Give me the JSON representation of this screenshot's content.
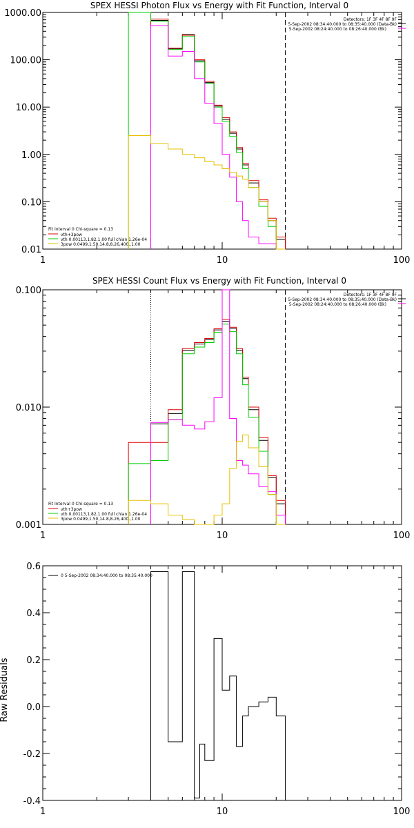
{
  "chart_data": [
    {
      "type": "line",
      "title": "SPEX HESSI Photon Flux vs Energy with Fit Function, Interval 0",
      "xscale": "log",
      "yscale": "log",
      "xlim": [
        1,
        100
      ],
      "ylim": [
        0.01,
        1000
      ],
      "x_tick_labels": [
        "1",
        "10",
        "100"
      ],
      "y_tick_labels": [
        "0.01",
        "0.10",
        "1.00",
        "10.00",
        "100.00",
        "1000.00"
      ],
      "legend_right": {
        "header": "Detectors: 1F 3F 4F 8F 9F",
        "entries": [
          "5-Sep-2002 08:34:40.000 to 08:35:40.000 (Data-Bk)",
          "5-Sep-2002 08:24:40.000 to 08:26:40.000 (Bk)"
        ]
      },
      "legend_left": {
        "header": "Fit Interval 0   Chi-square = 0.13",
        "entries": [
          "vth+3pow",
          "vth 0.00113,1.82,1.00  full chian 1.26e-04",
          "3pow 0.0499,1.50,14.8,8.26,400.,1.00"
        ]
      },
      "vlines": [
        {
          "x": 4.0,
          "style": "dotted"
        },
        {
          "x": 22.5,
          "style": "dashed"
        }
      ],
      "bin_edges": [
        3,
        4,
        5,
        6,
        7,
        8,
        9,
        10,
        11,
        12,
        13,
        14,
        16,
        18,
        20,
        22.5
      ],
      "series": [
        {
          "color": "#000000",
          "values": [
            null,
            680,
            170,
            340,
            95,
            33,
            10.5,
            5.5,
            2.8,
            1.3,
            0.6,
            0.25,
            0.1,
            0.04,
            0.016
          ]
        },
        {
          "color": "#dd0000",
          "values": [
            null,
            720,
            175,
            330,
            100,
            35,
            11,
            6.0,
            3.0,
            1.4,
            0.65,
            0.28,
            0.11,
            0.045,
            0.018
          ]
        },
        {
          "color": "#00cc00",
          "values": [
            1000,
            650,
            165,
            310,
            90,
            31,
            10,
            5.0,
            2.4,
            1.1,
            0.5,
            0.2,
            0.08,
            0.03,
            0.01
          ]
        },
        {
          "color": "#ff00ff",
          "values": [
            null,
            520,
            120,
            150,
            40,
            12,
            4.5,
            1.0,
            0.33,
            0.1,
            0.04,
            0.018,
            0.013,
            0.013,
            null
          ]
        },
        {
          "color": "#e6c000",
          "values": [
            2.5,
            1.7,
            1.3,
            1.0,
            0.85,
            0.7,
            0.6,
            0.5,
            0.42,
            0.35,
            0.3,
            0.2,
            0.1,
            0.04,
            0.01
          ]
        }
      ]
    },
    {
      "type": "line",
      "title": "SPEX HESSI Count Flux vs Energy with Fit Function, Interval 0",
      "xscale": "log",
      "yscale": "log",
      "xlim": [
        1,
        100
      ],
      "ylim": [
        0.001,
        0.1
      ],
      "x_tick_labels": [
        "1",
        "10",
        "100"
      ],
      "y_tick_labels": [
        "0.001",
        "0.010",
        "0.100"
      ],
      "legend_right": {
        "header": "Detectors: 1F 3F 4F 8F 9F",
        "entries": [
          "5-Sep-2002 08:34:40.000 to 08:35:40.000 (Data-Bk)",
          "5-Sep-2002 08:24:40.000 to 08:26:40.000 (Bk)"
        ]
      },
      "legend_left": {
        "header": "Fit Interval 0   Chi-square = 0.13",
        "entries": [
          "vth+3pow",
          "vth 0.00113,1.82,1.00  full chian 1.26e-04",
          "3pow 0.0499,1.50,14.8,8.26,400.,1.00"
        ]
      },
      "vlines": [
        {
          "x": 4.0,
          "style": "dotted"
        },
        {
          "x": 22.5,
          "style": "dashed"
        }
      ],
      "bin_edges": [
        3,
        4,
        5,
        6,
        7,
        8,
        9,
        10,
        11,
        12,
        13,
        14,
        16,
        18,
        20,
        22.5
      ],
      "series": [
        {
          "color": "#000000",
          "values": [
            null,
            0.0072,
            0.0088,
            0.0305,
            0.0345,
            0.0375,
            0.0455,
            0.054,
            0.047,
            0.0305,
            0.0175,
            0.0095,
            0.0052,
            0.0025,
            0.0015
          ]
        },
        {
          "color": "#dd0000",
          "values": [
            0.005,
            0.005,
            0.0095,
            0.0315,
            0.0355,
            0.0385,
            0.0465,
            0.056,
            0.048,
            0.0315,
            0.018,
            0.01,
            0.0055,
            0.0026,
            0.0016
          ]
        },
        {
          "color": "#00cc00",
          "values": [
            0.0033,
            0.0035,
            0.0078,
            0.0285,
            0.0325,
            0.0355,
            0.0435,
            0.051,
            0.044,
            0.0285,
            0.0155,
            0.0082,
            0.0042,
            0.0018,
            0.001
          ]
        },
        {
          "color": "#ff00ff",
          "values": [
            null,
            0.0074,
            0.0078,
            0.007,
            0.0065,
            0.0075,
            0.012,
            0.1,
            0.008,
            0.0035,
            0.0032,
            0.0027,
            0.0021,
            0.0019,
            0.0012
          ]
        },
        {
          "color": "#e6c000",
          "values": [
            0.0016,
            0.0015,
            0.0012,
            0.0011,
            0.001,
            0.001,
            0.0012,
            0.0015,
            0.003,
            0.0051,
            0.0058,
            0.0045,
            0.0031,
            0.0018,
            0.001
          ]
        }
      ]
    },
    {
      "type": "line",
      "title": "",
      "ylabel": "Raw Residuals",
      "xscale": "log",
      "yscale": "linear",
      "xlim": [
        1,
        100
      ],
      "ylim": [
        -0.4,
        0.6
      ],
      "x_tick_labels": [
        "1",
        "10",
        "100"
      ],
      "y_tick_labels": [
        "-0.4",
        "-0.2",
        "0.0",
        "0.2",
        "0.4",
        "0.6"
      ],
      "legend": {
        "entries": [
          "0  5-Sep-2002 08:34:40.000 to 08:35:40.000"
        ]
      },
      "bin_edges": [
        4,
        5,
        6,
        7,
        7.5,
        8,
        9,
        10,
        11,
        12,
        13,
        14,
        16,
        18,
        20,
        22.5
      ],
      "series": [
        {
          "color": "#000000",
          "values": [
            0.575,
            -0.15,
            0.575,
            -0.39,
            -0.16,
            -0.23,
            0.29,
            0.07,
            0.13,
            -0.17,
            -0.04,
            0.0,
            0.02,
            0.04,
            -0.04
          ]
        }
      ]
    }
  ]
}
